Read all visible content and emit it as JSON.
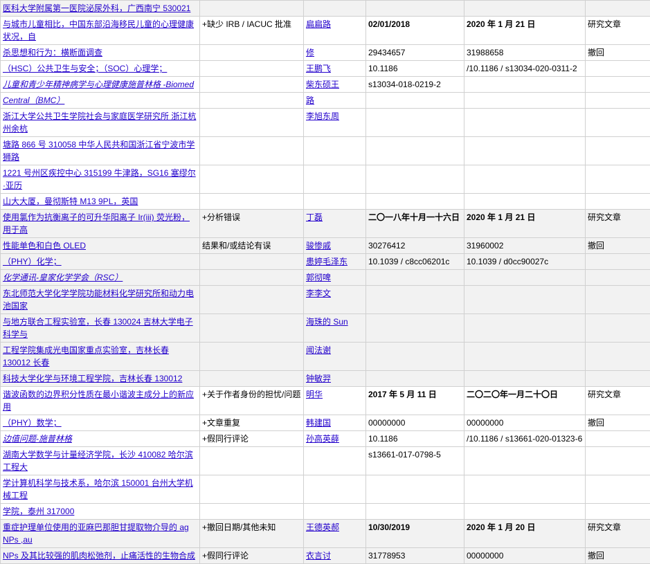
{
  "header_row": {
    "c1": "医科大学附属第一医院泌尿外科，广西南宁 530021"
  },
  "rows": [
    {
      "alt": false,
      "head": {
        "c1_parts": [
          {
            "t": "与城市儿童相比，中国东部沿海移民儿童的心理健康状况，自",
            "cls": "link"
          },
          {
            "t": "杀思想和行为：横断面调查",
            "cls": "link"
          },
          {
            "t": "（HSC）公共卫生与安全；（SOC）心理学；",
            "cls": "link"
          },
          {
            "t": "儿童和青少年精神病学与心理健康施普林格 -Biomed",
            "cls": "link italic"
          },
          {
            "t": "Central（BMC）",
            "cls": "link italic"
          },
          {
            "t": "浙江大学公共卫生学院社会与家庭医学研究所 浙江杭州余杭",
            "cls": "link"
          },
          {
            "t": "塘路 866 号 310058 中华人民共和国浙江省宁波市学狮路",
            "cls": "link"
          },
          {
            "t": "1221 号州区疾控中心 315199 牛津路，SG16 塞缪尔·亚历",
            "cls": "link"
          },
          {
            "t": "山大大厦，曼彻斯特 M13 9PL，英国",
            "cls": "link"
          }
        ],
        "c2": "+缺少 IRB / IACUC 批准",
        "c3_parts": [
          "扁扁路",
          "修",
          "王鹏飞",
          "柴东硕王",
          "路",
          "李旭东周"
        ],
        "c4_parts": [
          "02/01/2018",
          "29434657",
          "10.1186",
          "s13034-018-0219-2"
        ],
        "c5_parts": [
          "2020 年 1 月 21 日",
          "31988658",
          "/10.1186 / s13034-020-0311-2"
        ],
        "c6_parts": [
          "研究文章",
          "撤回"
        ]
      }
    },
    {
      "alt": true,
      "head": {
        "c1_parts": [
          {
            "t": "使用氯作为抗衡离子的可升华阳离子 Ir(iii) 荧光粉，用于高",
            "cls": "link"
          },
          {
            "t": "性能单色和白色 OLED",
            "cls": "link"
          },
          {
            "t": "（PHY）化学；",
            "cls": "link"
          },
          {
            "t": "化学通讯-皇家化学学会（RSC）",
            "cls": "link italic"
          },
          {
            "t": "东北师范大学化学学院功能材料化学研究所和动力电池国家",
            "cls": "link"
          },
          {
            "t": "与地方联合工程实验室，长春 130024 吉林大学电子科学与",
            "cls": "link"
          },
          {
            "t": "工程学院集成光电国家重点实验室，吉林长春 130012 长春",
            "cls": "link"
          },
          {
            "t": "科技大学化学与环境工程学院，吉林长春 130012",
            "cls": "link"
          }
        ],
        "c2": "+分析错误\n结果和/或结论有误",
        "c3_parts": [
          "丁磊",
          "骏惨戚",
          "患婷毛泽东",
          "郭彻啤",
          "李李文",
          "海珠的 Sun",
          "闻法谢",
          "钟敏羿"
        ],
        "c4_parts": [
          "二〇一八年十月一十六日",
          "30276412",
          "10.1039 / c8cc06201c"
        ],
        "c5_parts": [
          "2020 年 1 月 21 日",
          "31960002",
          "10.1039 / d0cc90027c"
        ],
        "c6_parts": [
          "研究文章",
          "撤回"
        ]
      }
    },
    {
      "alt": false,
      "head": {
        "c1_parts": [
          {
            "t": "谐波函数的边界积分性质在最小谐波主成分上的新应用",
            "cls": "link"
          },
          {
            "t": "（PHY）数学；",
            "cls": "link"
          },
          {
            "t": "边值问题-施普林格",
            "cls": "link italic"
          },
          {
            "t": "湖南大学数学与计量经济学院，长沙 410082 哈尔滨工程大",
            "cls": "link"
          },
          {
            "t": "学计算机科学与技术系，哈尔滨 150001 台州大学机械工程",
            "cls": "link"
          },
          {
            "t": "学院，泰州 317000",
            "cls": "link"
          }
        ],
        "c2": "+关于作者身份的担忧/问题\n+文章重复\n+假同行评论",
        "c3_parts": [
          "明华",
          "韩建国",
          "孙高英薛"
        ],
        "c4_parts": [
          "2017 年 5 月 11 日",
          "00000000",
          "10.1186",
          "s13661-017-0798-5"
        ],
        "c5_parts": [
          "二〇二〇年一月二十〇日",
          "00000000",
          "/10.1186 / s13661-020-01323-6"
        ],
        "c6_parts": [
          "研究文章",
          "撤回"
        ]
      }
    },
    {
      "alt": true,
      "head": {
        "c1_parts": [
          {
            "t": "重症护理单位使用的亚麻巴那胆甘提取物介导的 ag NPs ,au",
            "cls": "link"
          },
          {
            "t": "NPs 及其比较强的肌肉松弛剂，止痛活性的生物合成",
            "cls": "link"
          }
        ],
        "c2": "+撤回日期/其他未知\n+假同行评论",
        "c3_parts": [
          "王德英郝",
          "衣言讨"
        ],
        "c4_parts": [
          "10/30/2019",
          "31778953"
        ],
        "c5_parts": [
          "2020 年 1 月 20 日",
          "00000000"
        ],
        "c6_parts": [
          "研究文章",
          "撤回"
        ]
      }
    }
  ]
}
